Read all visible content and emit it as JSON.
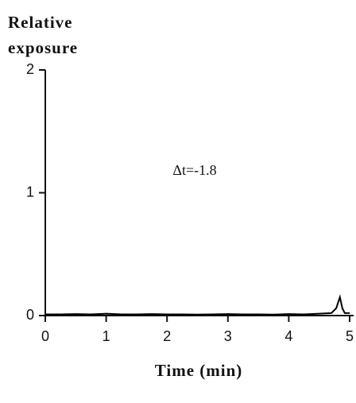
{
  "chart_data": {
    "type": "line",
    "ylabel": [
      "Relative",
      "exposure"
    ],
    "xlabel": "Time  (min)",
    "annotation": "Δt=-1.8",
    "x": [
      0,
      0.25,
      0.5,
      0.75,
      1,
      1.25,
      1.5,
      1.75,
      2,
      2.25,
      2.5,
      2.75,
      3,
      3.25,
      3.5,
      3.75,
      4,
      4.25,
      4.5,
      4.7,
      4.78,
      4.84,
      4.88,
      4.92,
      5
    ],
    "series": [
      {
        "color": "#000000",
        "values": [
          0.01,
          0.01,
          0.012,
          0.01,
          0.015,
          0.01,
          0.01,
          0.012,
          0.01,
          0.01,
          0.008,
          0.01,
          0.012,
          0.01,
          0.01,
          0.008,
          0.012,
          0.01,
          0.015,
          0.02,
          0.06,
          0.15,
          0.06,
          0.02,
          0.02
        ]
      }
    ],
    "xlim": [
      0,
      5
    ],
    "xticks": [
      0,
      1,
      2,
      3,
      4,
      5
    ],
    "ylim": [
      0,
      2
    ],
    "yticks": [
      0,
      1,
      2
    ]
  }
}
